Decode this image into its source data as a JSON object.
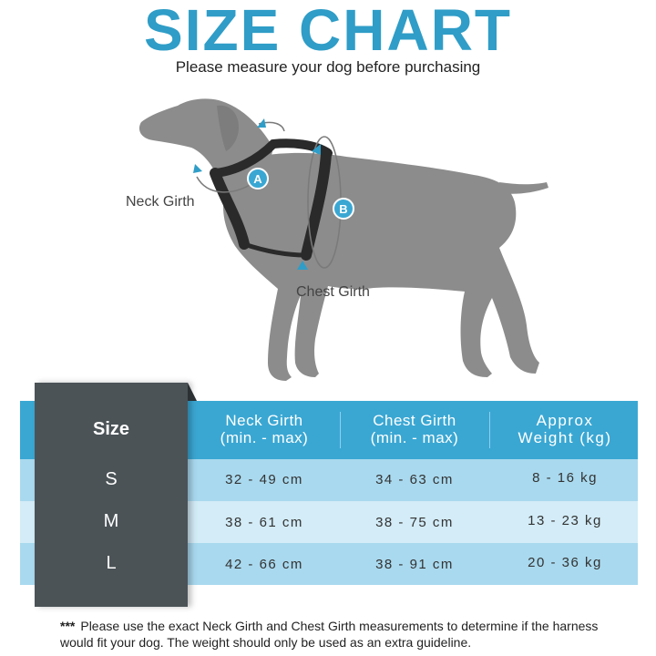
{
  "header": {
    "title": "SIZE CHART",
    "subtitle": "Please measure your dog before purchasing"
  },
  "diagram": {
    "marker_a": "A",
    "marker_b": "B",
    "neck_label": "Neck Girth",
    "chest_label": "Chest Girth"
  },
  "table": {
    "size_header": "Size",
    "columns": [
      {
        "line1": "Neck Girth",
        "line2": "(min. - max)"
      },
      {
        "line1": "Chest Girth",
        "line2": "(min. - max)"
      },
      {
        "line1": "Approx",
        "line2": "Weight (kg)"
      }
    ],
    "rows": [
      {
        "size": "S",
        "neck": "32 - 49 cm",
        "chest": "34 - 63 cm",
        "weight": "8 - 16 kg"
      },
      {
        "size": "M",
        "neck": "38 - 61 cm",
        "chest": "38 - 75 cm",
        "weight": "13 - 23 kg"
      },
      {
        "size": "L",
        "neck": "42 - 66 cm",
        "chest": "38 - 91 cm",
        "weight": "20 - 36 kg"
      }
    ]
  },
  "footnote": {
    "stars": "***",
    "text": "Please use the exact Neck Girth and Chest Girth measurements to determine if the harness would fit your dog. The weight should only be used as an extra guideline."
  },
  "colors": {
    "accent": "#2f9dc7",
    "header_row": "#3aa7d3",
    "row_dark": "#a9d9ee",
    "row_light": "#d3ecf7",
    "size_column": "#4b5357",
    "dog": "#8c8c8c",
    "harness": "#2a2a2a"
  }
}
